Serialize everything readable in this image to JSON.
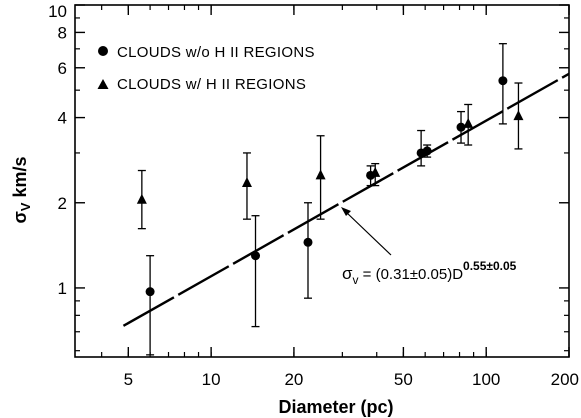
{
  "chart_data": {
    "type": "scatter",
    "xscale": "log",
    "yscale": "log",
    "xlim": [
      3.2,
      200
    ],
    "ylim": [
      0.57,
      10
    ],
    "xlabel": "Diameter (pc)",
    "ylabel": {
      "symbol": "σ",
      "subscript": "V",
      "rest": " km/s"
    },
    "x_ticks": [
      {
        "value": 5,
        "label": "5"
      },
      {
        "value": 10,
        "label": "10"
      },
      {
        "value": 20,
        "label": "20"
      },
      {
        "value": 50,
        "label": "50"
      },
      {
        "value": 100,
        "label": "100"
      },
      {
        "value": 200,
        "label": "200"
      }
    ],
    "y_ticks": [
      {
        "value": 1,
        "label": "1"
      },
      {
        "value": 2,
        "label": "2"
      },
      {
        "value": 4,
        "label": "4"
      },
      {
        "value": 6,
        "label": "6"
      },
      {
        "value": 8,
        "label": "8"
      },
      {
        "value": 10,
        "label": "10"
      }
    ],
    "series": [
      {
        "name": "CLOUDS w/o H II REGIONS",
        "marker": "circle",
        "points": [
          {
            "x": 6.0,
            "y": 0.97,
            "ylo": 0.58,
            "yhi": 1.3
          },
          {
            "x": 14.5,
            "y": 1.3,
            "ylo": 0.73,
            "yhi": 1.8
          },
          {
            "x": 22.5,
            "y": 1.45,
            "ylo": 0.92,
            "yhi": 2.0
          },
          {
            "x": 38.0,
            "y": 2.5,
            "ylo": 2.3,
            "yhi": 2.7
          },
          {
            "x": 58.0,
            "y": 3.0,
            "ylo": 2.7,
            "yhi": 3.6
          },
          {
            "x": 61.0,
            "y": 3.05,
            "ylo": 2.9,
            "yhi": 3.2
          },
          {
            "x": 81.0,
            "y": 3.7,
            "ylo": 3.25,
            "yhi": 4.2
          },
          {
            "x": 115.0,
            "y": 5.4,
            "ylo": 3.8,
            "yhi": 7.3
          }
        ]
      },
      {
        "name": "CLOUDS w/ H II REGIONS",
        "marker": "triangle",
        "points": [
          {
            "x": 5.6,
            "y": 2.05,
            "ylo": 1.62,
            "yhi": 2.6
          },
          {
            "x": 13.5,
            "y": 2.35,
            "ylo": 1.75,
            "yhi": 3.0
          },
          {
            "x": 25.0,
            "y": 2.5,
            "ylo": 1.75,
            "yhi": 3.45
          },
          {
            "x": 39.5,
            "y": 2.55,
            "ylo": 2.3,
            "yhi": 2.75
          },
          {
            "x": 86.0,
            "y": 3.8,
            "ylo": 3.2,
            "yhi": 4.45
          },
          {
            "x": 131.0,
            "y": 4.05,
            "ylo": 3.1,
            "yhi": 5.3
          }
        ]
      }
    ],
    "fit": {
      "equation": {
        "prefix": "σ",
        "subscript": "v",
        "body": " = (0.31±0.05)D",
        "exponent": "0.55±0.05"
      },
      "coefficient": 0.31,
      "exponent_value": 0.55,
      "x_range": [
        4.8,
        200
      ],
      "style": "long-dash"
    },
    "legend": {
      "position": "top-left"
    },
    "grid": false
  }
}
